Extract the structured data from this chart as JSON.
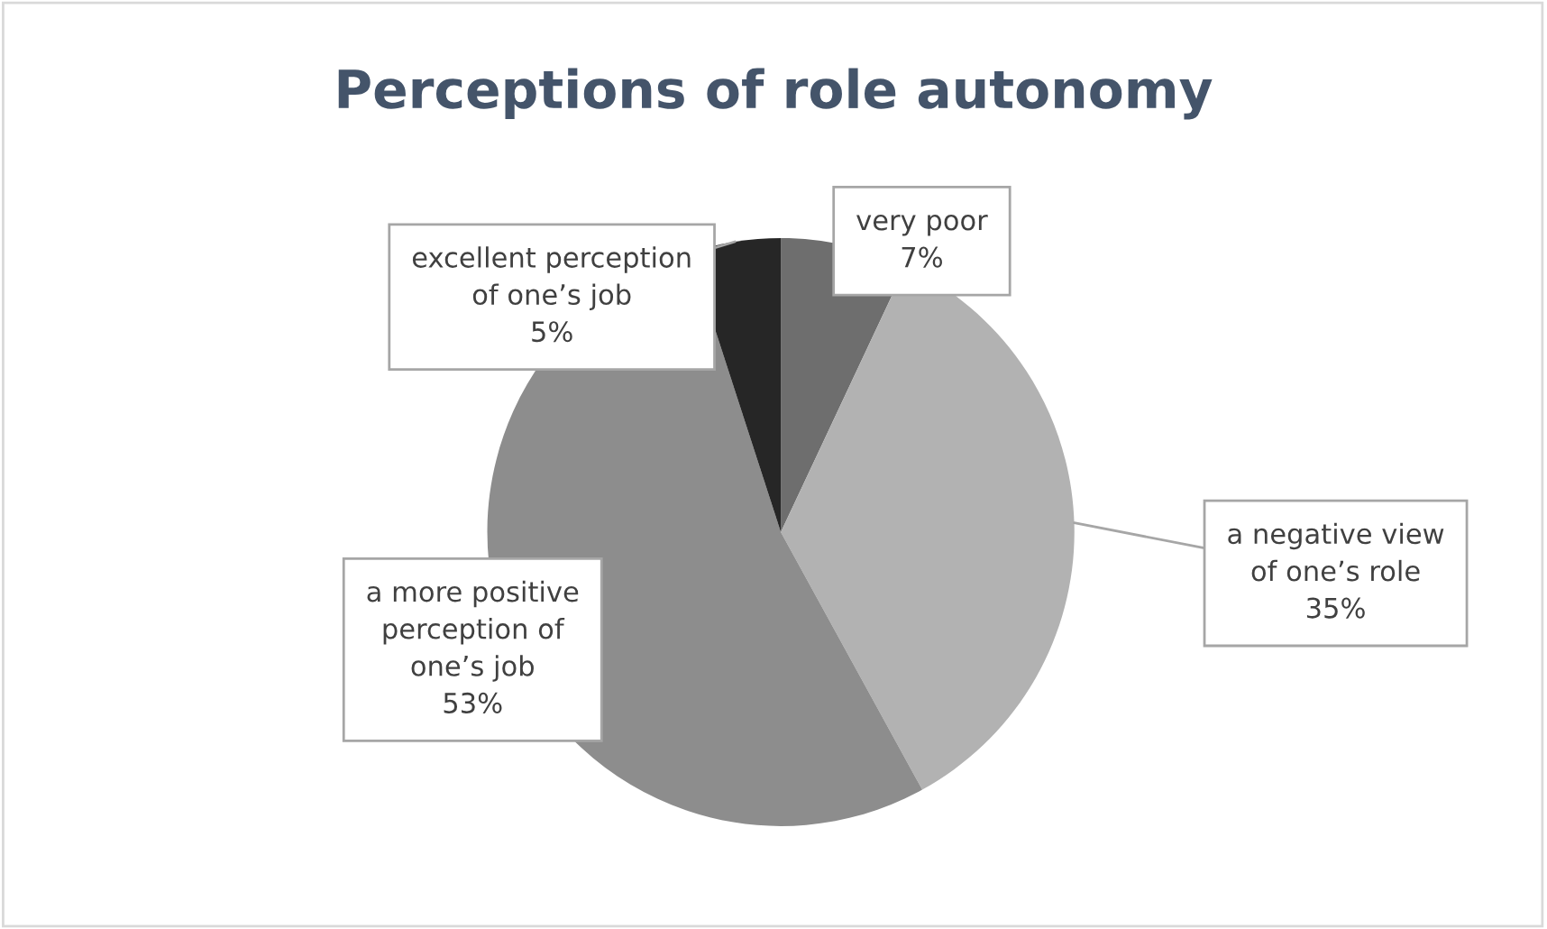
{
  "chart_data": {
    "type": "pie",
    "title": "Perceptions of role autonomy",
    "categories": [
      "very poor",
      "a negative view\nof one’s role",
      "a more positive\nperception of\none’s job",
      "excellent perception\nof one’s job"
    ],
    "values": [
      7,
      35,
      53,
      5
    ],
    "value_labels": [
      "7%",
      "35%",
      "53%",
      "5%"
    ],
    "colors": [
      "#6e6e6e",
      "#b2b2b2",
      "#8d8d8d",
      "#262626"
    ],
    "legend": false
  }
}
